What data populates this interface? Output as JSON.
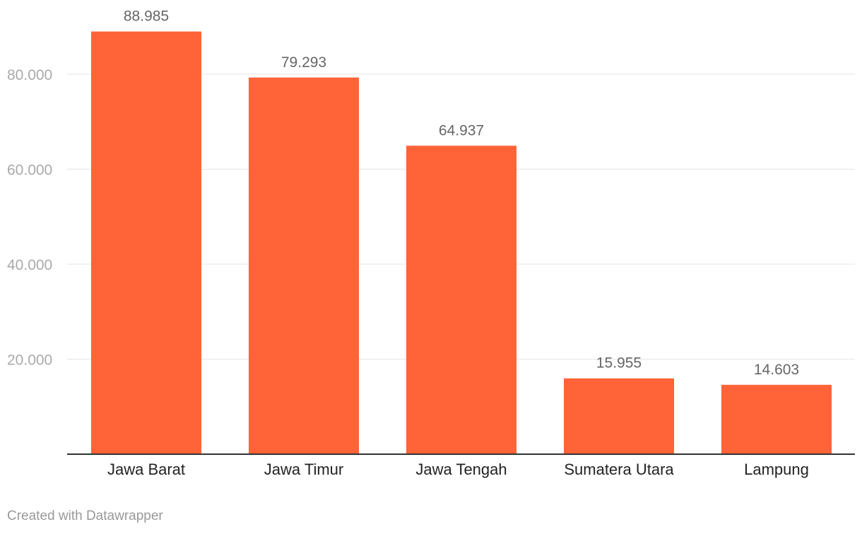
{
  "chart_data": {
    "type": "bar",
    "categories": [
      "Jawa Barat",
      "Jawa Timur",
      "Jawa Tengah",
      "Sumatera Utara",
      "Lampung"
    ],
    "values": [
      88985,
      79293,
      64937,
      15955,
      14603
    ],
    "value_labels": [
      "88.985",
      "79.293",
      "64.937",
      "15.955",
      "14.603"
    ],
    "y_ticks": [
      20000,
      40000,
      60000,
      80000
    ],
    "y_tick_labels": [
      "20.000",
      "40.000",
      "60.000",
      "80.000"
    ],
    "ylim": [
      0,
      89000
    ],
    "grid": true,
    "bar_color": "#ff6337",
    "title": "",
    "xlabel": "",
    "ylabel": ""
  },
  "footer": {
    "credit": "Created with Datawrapper"
  }
}
